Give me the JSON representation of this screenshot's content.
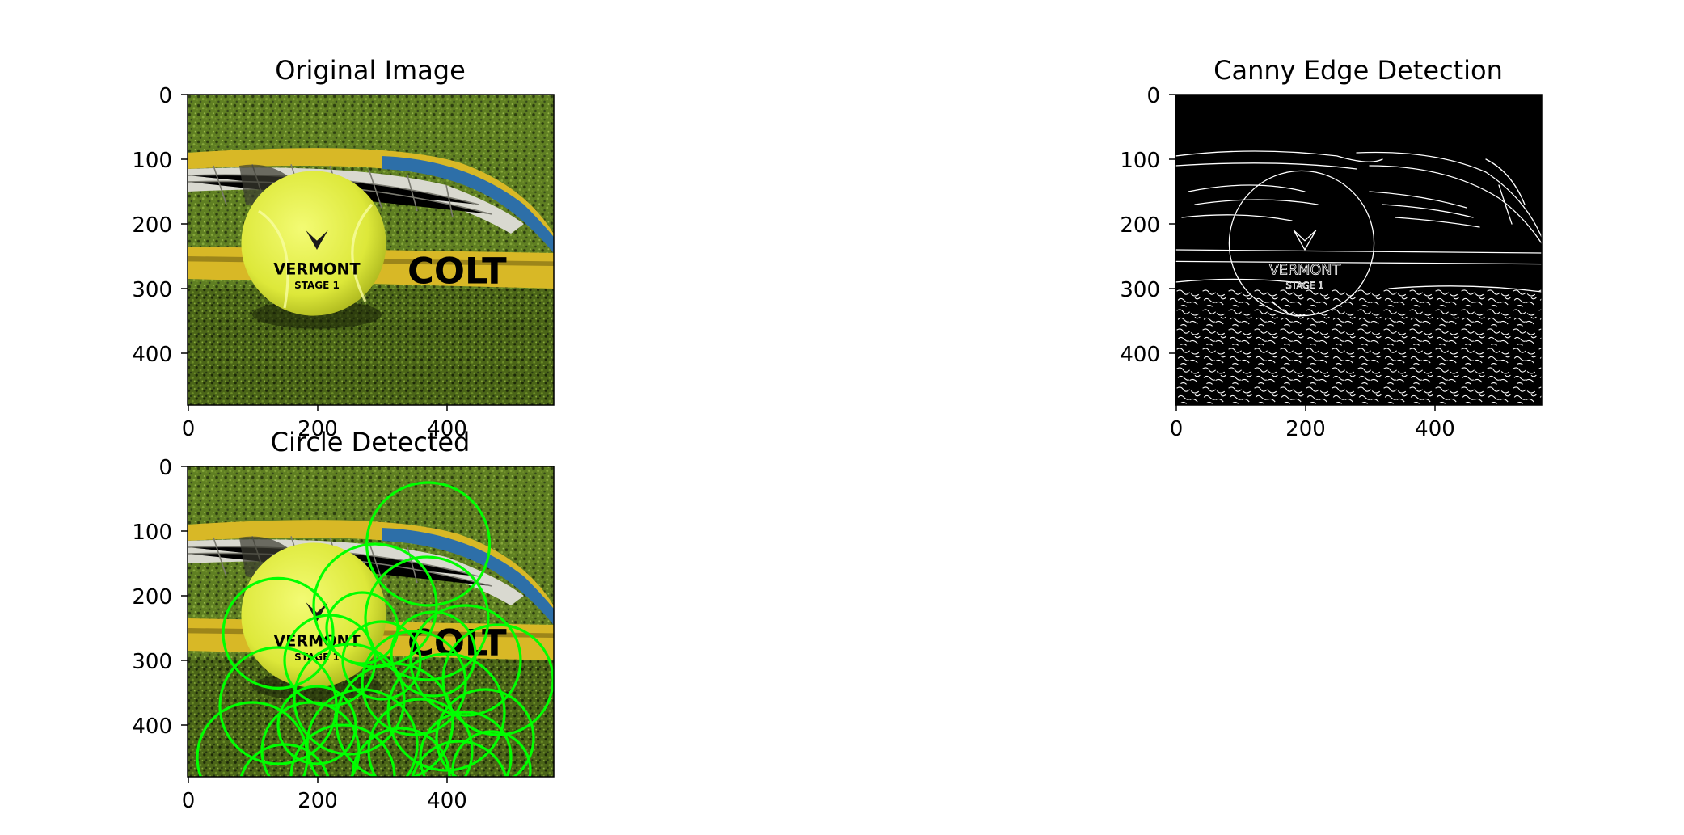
{
  "figure": {
    "background": "#ffffff"
  },
  "chart_data": [
    {
      "type": "image",
      "title": "Original Image",
      "image_width": 566,
      "image_height": 480,
      "xlim": [
        0,
        566
      ],
      "ylim": [
        480,
        0
      ],
      "xticks": [
        0,
        200,
        400
      ],
      "yticks": [
        0,
        100,
        200,
        300,
        400
      ],
      "content": "tennis ball on a blue racket over green court",
      "ball_text": [
        "VERMONT",
        "STAGE 1"
      ],
      "racket_text": "COLT",
      "colors": {
        "ball": "#e4f03a",
        "grass": "#5a7a1e",
        "racket_blue": "#2d6fa8",
        "racket_yellow": "#d8b826"
      }
    },
    {
      "type": "image",
      "title": "Canny Edge Detection",
      "image_width": 566,
      "image_height": 480,
      "xlim": [
        0,
        566
      ],
      "ylim": [
        480,
        0
      ],
      "xticks": [
        0,
        200,
        400
      ],
      "yticks": [
        0,
        100,
        200,
        300,
        400
      ],
      "content": "white edge map on black background",
      "ball_text": [
        "VERMONT",
        "STAGE 1"
      ],
      "colors": {
        "background": "#000000",
        "edges": "#ffffff"
      }
    },
    {
      "type": "image",
      "title": "Circle Detected",
      "image_width": 566,
      "image_height": 480,
      "xlim": [
        0,
        566
      ],
      "ylim": [
        480,
        0
      ],
      "xticks": [
        0,
        200,
        400
      ],
      "yticks": [
        0,
        100,
        200,
        300,
        400
      ],
      "content": "original image with detected circles overlaid",
      "ball_text": [
        "VERMONT",
        "STAGE 1"
      ],
      "racket_text": "COLT",
      "circle_color": "#00ff00",
      "circles": [
        {
          "cx": 372,
          "cy": 120,
          "r": 95
        },
        {
          "cx": 140,
          "cy": 258,
          "r": 85
        },
        {
          "cx": 290,
          "cy": 215,
          "r": 95
        },
        {
          "cx": 370,
          "cy": 235,
          "r": 95
        },
        {
          "cx": 430,
          "cy": 300,
          "r": 85
        },
        {
          "cx": 480,
          "cy": 330,
          "r": 85
        },
        {
          "cx": 220,
          "cy": 300,
          "r": 70
        },
        {
          "cx": 350,
          "cy": 335,
          "r": 80
        },
        {
          "cx": 140,
          "cy": 370,
          "r": 90
        },
        {
          "cx": 250,
          "cy": 360,
          "r": 85
        },
        {
          "cx": 320,
          "cy": 395,
          "r": 90
        },
        {
          "cx": 400,
          "cy": 380,
          "r": 90
        },
        {
          "cx": 460,
          "cy": 420,
          "r": 75
        },
        {
          "cx": 100,
          "cy": 450,
          "r": 85
        },
        {
          "cx": 190,
          "cy": 440,
          "r": 75
        },
        {
          "cx": 270,
          "cy": 430,
          "r": 85
        },
        {
          "cx": 360,
          "cy": 440,
          "r": 80
        },
        {
          "cx": 430,
          "cy": 450,
          "r": 70
        },
        {
          "cx": 300,
          "cy": 300,
          "r": 60
        },
        {
          "cx": 380,
          "cy": 290,
          "r": 65
        },
        {
          "cx": 200,
          "cy": 400,
          "r": 60
        },
        {
          "cx": 330,
          "cy": 480,
          "r": 75
        },
        {
          "cx": 240,
          "cy": 480,
          "r": 80
        },
        {
          "cx": 150,
          "cy": 500,
          "r": 70
        },
        {
          "cx": 420,
          "cy": 500,
          "r": 75
        },
        {
          "cx": 470,
          "cy": 470,
          "r": 60
        },
        {
          "cx": 270,
          "cy": 250,
          "r": 55
        }
      ]
    }
  ]
}
